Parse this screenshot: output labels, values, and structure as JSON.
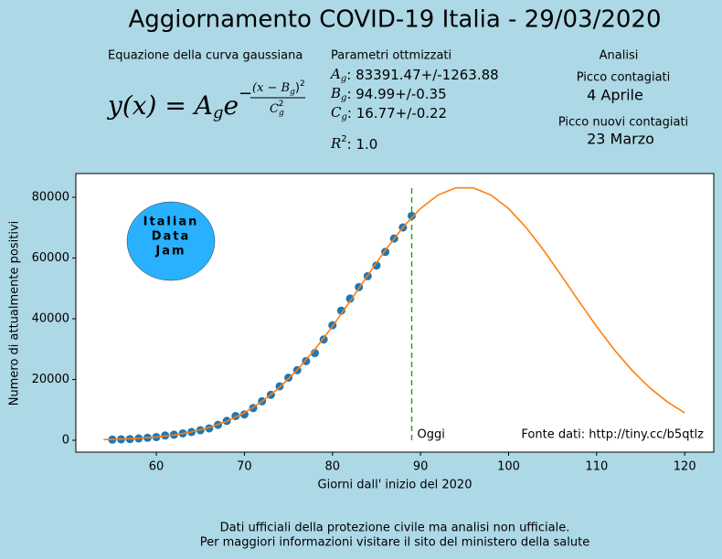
{
  "chart_data": {
    "type": "scatter",
    "title": "Aggiornamento COVID-19 Italia - 29/03/2020",
    "equation": {
      "heading": "Equazione della curva gaussiana",
      "lhs": "y(x) = A",
      "lhs_sub": "g",
      "base": "e",
      "sign": "−",
      "numerator": "(x − B",
      "num_sub": "g",
      "num_close": ")",
      "num_sup": "2",
      "denominator": "C",
      "den_sub": "g",
      "den_sup": "2"
    },
    "parameters": {
      "heading": "Parametri ottmizzati",
      "items": [
        {
          "symbol": "A",
          "sub": "g",
          "text": ": 83391.47+/-1263.88"
        },
        {
          "symbol": "B",
          "sub": "g",
          "text": ": 94.99+/-0.35"
        },
        {
          "symbol": "C",
          "sub": "g",
          "text": ": 16.77+/-0.22"
        }
      ],
      "r2": {
        "symbol": "R",
        "sup": "2",
        "text": ": 1.0"
      }
    },
    "analysis": {
      "heading": "Analisi",
      "peak_label": "Picco contagiati",
      "peak": "4 Aprile",
      "new_peak_label": "Picco nuovi contagiati",
      "new_peak": "23 Marzo"
    },
    "x_label": "Giorni dall' inizio del 2020",
    "y_label": "Numero di attualmente positivi",
    "xlim": [
      50.86,
      123.3
    ],
    "ylim": [
      -3910,
      87820
    ],
    "xticks": [
      60,
      70,
      80,
      90,
      100,
      110,
      120
    ],
    "yticks": [
      0,
      20000,
      40000,
      60000,
      80000
    ],
    "series": [
      {
        "type": "scatter",
        "color": "#1f77b4",
        "x": [
          55,
          56,
          57,
          58,
          59,
          60,
          61,
          62,
          63,
          64,
          65,
          66,
          67,
          68,
          69,
          70,
          71,
          72,
          73,
          74,
          75,
          76,
          77,
          78,
          79,
          80,
          81,
          82,
          83,
          84,
          85,
          86,
          87,
          88,
          89
        ],
        "values": [
          221,
          311,
          385,
          588,
          821,
          1049,
          1577,
          1835,
          2263,
          2706,
          3296,
          3916,
          5061,
          6387,
          7985,
          8514,
          10590,
          12839,
          14955,
          17750,
          20603,
          23073,
          26062,
          28710,
          33190,
          37860,
          42681,
          46638,
          50418,
          54030,
          57521,
          62013,
          66414,
          70065,
          73880
        ]
      },
      {
        "type": "line",
        "color": "#ff7f0e",
        "x": [
          54,
          56,
          58,
          60,
          62,
          64,
          66,
          68,
          70,
          72,
          74,
          76,
          78,
          80,
          82,
          84,
          86,
          88,
          90,
          92,
          94,
          96,
          98,
          100,
          102,
          104,
          106,
          108,
          110,
          112,
          114,
          116,
          118,
          120
        ],
        "values": [
          212,
          374,
          643,
          1073,
          1739,
          2742,
          4201,
          6253,
          9048,
          12734,
          17404,
          23141,
          29879,
          37509,
          45765,
          54271,
          62560,
          70091,
          76328,
          80781,
          83100,
          83089,
          80747,
          76270,
          70024,
          62485,
          54196,
          45681,
          37434,
          29804,
          23066,
          17354,
          12692,
          9015
        ]
      }
    ],
    "today": {
      "x": 89,
      "top": 83600,
      "color": "#2ca02c",
      "label": "Oggi"
    },
    "source": "Fonte dati: http://tiny.cc/b5qtlz",
    "logo": [
      "Italian",
      "Data",
      "Jam"
    ],
    "footer": [
      "Dati ufficiali della protezione civile ma analisi non ufficiale.",
      "Per maggiori informazioni visitare il sito del ministero della salute"
    ]
  }
}
